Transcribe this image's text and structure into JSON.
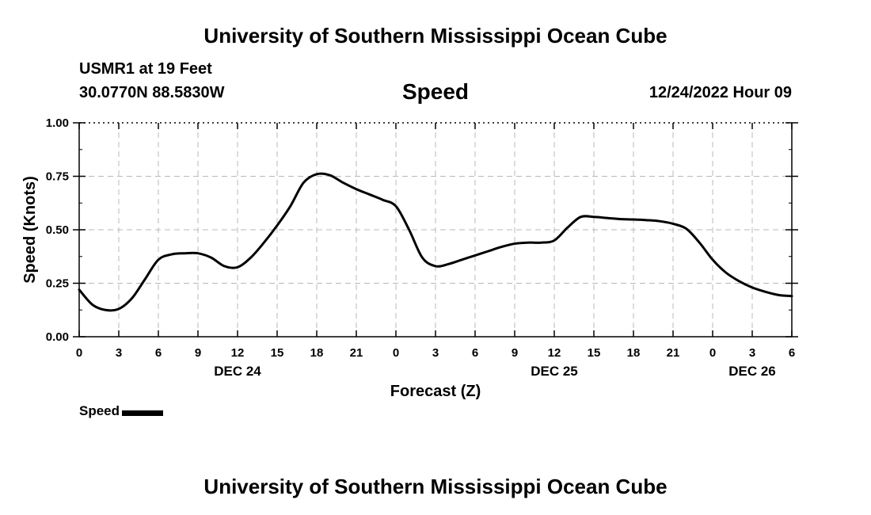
{
  "page": {
    "title": "University of Southern Mississippi Ocean Cube",
    "footer_title": "University of Southern Mississippi Ocean Cube",
    "station": "USMR1 at 19 Feet",
    "coordinates": "30.0770N  88.5830W",
    "plot_title": "Speed",
    "datetime": "12/24/2022 Hour 09"
  },
  "chart_data": {
    "type": "line",
    "title": "Speed",
    "xlabel": "Forecast (Z)",
    "ylabel": "Speed (Knots)",
    "x_unit": "forecast hour",
    "xlim": [
      0,
      54
    ],
    "ylim": [
      0,
      1
    ],
    "x_ticks": [
      0,
      3,
      6,
      9,
      12,
      15,
      18,
      21,
      24,
      27,
      30,
      33,
      36,
      39,
      42,
      45,
      48,
      51,
      54
    ],
    "x_tick_labels": [
      "0",
      "3",
      "6",
      "9",
      "12",
      "15",
      "18",
      "21",
      "0",
      "3",
      "6",
      "9",
      "12",
      "15",
      "18",
      "21",
      "0",
      "3",
      "6"
    ],
    "y_ticks": [
      0,
      0.25,
      0.5,
      0.75,
      1.0
    ],
    "y_tick_labels": [
      "0.00",
      "0.25",
      "0.50",
      "0.75",
      "1.00"
    ],
    "date_labels": [
      {
        "x": 12,
        "label": "DEC 24"
      },
      {
        "x": 36,
        "label": "DEC 25"
      },
      {
        "x": 51,
        "label": "DEC 26"
      }
    ],
    "grid": true,
    "legend_position": "bottom-left",
    "series": [
      {
        "name": "Speed",
        "color": "#000000",
        "x": [
          0,
          1,
          2,
          3,
          4,
          5,
          6,
          7,
          8,
          9,
          10,
          11,
          12,
          13,
          14,
          15,
          16,
          17,
          18,
          19,
          20,
          21,
          22,
          23,
          24,
          25,
          26,
          27,
          28,
          29,
          30,
          31,
          32,
          33,
          34,
          35,
          36,
          37,
          38,
          39,
          40,
          41,
          42,
          43,
          44,
          45,
          46,
          47,
          48,
          49,
          50,
          51,
          52,
          53,
          54
        ],
        "values": [
          0.22,
          0.15,
          0.125,
          0.13,
          0.18,
          0.27,
          0.36,
          0.385,
          0.39,
          0.39,
          0.37,
          0.33,
          0.325,
          0.37,
          0.44,
          0.52,
          0.61,
          0.72,
          0.76,
          0.755,
          0.72,
          0.69,
          0.665,
          0.64,
          0.61,
          0.5,
          0.37,
          0.33,
          0.34,
          0.36,
          0.38,
          0.4,
          0.42,
          0.435,
          0.44,
          0.44,
          0.45,
          0.51,
          0.56,
          0.56,
          0.555,
          0.55,
          0.548,
          0.545,
          0.54,
          0.528,
          0.505,
          0.44,
          0.36,
          0.3,
          0.26,
          0.23,
          0.21,
          0.195,
          0.19
        ]
      }
    ]
  }
}
